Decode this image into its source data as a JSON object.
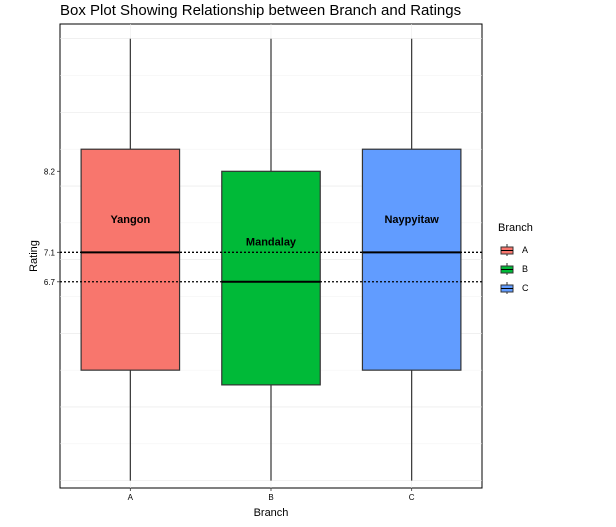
{
  "chart_data": {
    "type": "box",
    "title": "Box Plot Showing Relationship between Branch and Ratings",
    "xlabel": "Branch",
    "ylabel": "Rating",
    "categories": [
      "A",
      "B",
      "C"
    ],
    "y_ticks": [
      6.7,
      7.1,
      8.2
    ],
    "y_tick_labels": [
      "6.7",
      "7.1",
      "8.2"
    ],
    "ylim": [
      3.9,
      10.2
    ],
    "grid": true,
    "reference_lines": [
      6.7,
      7.1
    ],
    "reference_line_style": "dotted",
    "series": [
      {
        "category": "A",
        "name": "Yangon",
        "whisker_low": 4.0,
        "q1": 5.5,
        "median": 7.1,
        "q3": 8.5,
        "whisker_high": 10.0,
        "color": "#F8766D"
      },
      {
        "category": "B",
        "name": "Mandalay",
        "whisker_low": 4.0,
        "q1": 5.3,
        "median": 6.7,
        "q3": 8.2,
        "whisker_high": 10.0,
        "color": "#00BA38"
      },
      {
        "category": "C",
        "name": "Naypyitaw",
        "whisker_low": 4.0,
        "q1": 5.5,
        "median": 7.1,
        "q3": 8.5,
        "whisker_high": 10.0,
        "color": "#619CFF"
      }
    ],
    "legend": {
      "title": "Branch",
      "placement": "right",
      "entries": [
        "A",
        "B",
        "C"
      ]
    }
  }
}
